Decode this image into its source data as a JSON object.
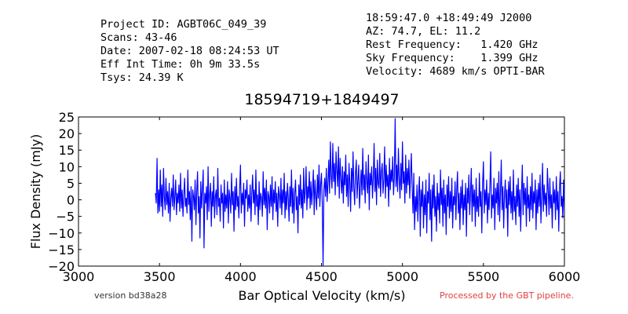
{
  "header_left": [
    "Project ID: AGBT06C_049_39",
    "Scans: 43-46",
    "Date: 2007-02-18 08:24:53 UT",
    "Eff Int Time: 0h 9m 33.5s",
    "Tsys: 24.39 K"
  ],
  "header_right": [
    "18:59:47.0 +18:49:49 J2000",
    "AZ: 74.7, EL: 11.2",
    "Rest Frequency:   1.420 GHz",
    "Sky Frequency:    1.399 GHz",
    "Velocity: 4689 km/s OPTI-BAR"
  ],
  "footer": {
    "version": "version bd38a28",
    "processed": "Processed by the GBT pipeline.",
    "version_color": "#333333",
    "processed_color": "#e04040"
  },
  "chart_data": {
    "type": "line",
    "title": "18594719+1849497",
    "xlabel": "Bar Optical Velocity (km/s)",
    "ylabel": "Flux Density (mJy)",
    "xlim": [
      3000,
      6000
    ],
    "ylim": [
      -20,
      25
    ],
    "xticks": [
      3000,
      3500,
      4000,
      4500,
      5000,
      5500,
      6000
    ],
    "yticks": [
      -20,
      -15,
      -10,
      -5,
      0,
      5,
      10,
      15,
      20,
      25
    ],
    "grid": false,
    "line_color": "#0000ff",
    "series": [
      {
        "x_range": [
          3475,
          5920
        ],
        "x_step": 5,
        "values": [
          2.0,
          -1.0,
          12.5,
          -4.0,
          3.0,
          -3.5,
          9.0,
          -2.0,
          4.5,
          -5.0,
          9.5,
          1.0,
          -3.0,
          6.5,
          -1.5,
          2.5,
          -4.0,
          5.0,
          -6.5,
          0.5,
          3.5,
          -2.0,
          7.5,
          -3.0,
          1.0,
          6.0,
          -4.5,
          2.0,
          -1.0,
          4.5,
          -3.5,
          8.0,
          -2.5,
          3.0,
          -5.0,
          1.5,
          6.5,
          -2.0,
          0.5,
          -4.0,
          9.0,
          -1.5,
          2.5,
          -6.0,
          4.0,
          -12.5,
          3.0,
          1.0,
          -3.0,
          6.0,
          -7.5,
          2.5,
          8.5,
          -4.0,
          1.0,
          -11.5,
          5.5,
          -2.5,
          3.5,
          9.0,
          -14.5,
          2.0,
          -1.0,
          4.0,
          -6.0,
          10.0,
          -3.5,
          1.5,
          5.0,
          -8.0,
          2.5,
          -2.0,
          7.0,
          -5.5,
          1.0,
          3.0,
          -4.5,
          9.5,
          -2.0,
          0.5,
          -6.5,
          4.5,
          -1.0,
          2.0,
          -8.5,
          6.0,
          -3.5,
          1.5,
          -2.5,
          5.5,
          -7.0,
          3.0,
          0.5,
          -4.0,
          8.0,
          -1.5,
          2.5,
          -9.5,
          4.0,
          -3.0,
          6.5,
          -2.0,
          1.0,
          -5.5,
          3.5,
          10.5,
          -4.0,
          2.0,
          -1.5,
          5.0,
          -8.0,
          3.0,
          0.5,
          6.0,
          -3.5,
          1.5,
          -2.5,
          4.5,
          -6.5,
          2.0,
          7.5,
          -1.0,
          3.0,
          -4.5,
          9.0,
          -2.0,
          1.5,
          -7.5,
          5.5,
          -3.0,
          2.0,
          0.5,
          -5.0,
          8.5,
          -1.5,
          3.5,
          -2.5,
          6.0,
          -9.0,
          2.5,
          1.0,
          -4.0,
          4.5,
          -2.0,
          7.0,
          -6.0,
          3.0,
          -1.0,
          5.5,
          -3.5,
          2.0,
          -8.0,
          4.0,
          1.5,
          -2.5,
          6.5,
          -4.5,
          3.0,
          -1.0,
          8.0,
          -5.5,
          2.5,
          -3.0,
          5.0,
          0.5,
          -6.5,
          4.0,
          -2.0,
          9.0,
          -4.0,
          3.5,
          -7.0,
          2.0,
          6.0,
          -3.0,
          1.0,
          -10.0,
          4.5,
          -1.5,
          7.5,
          -2.5,
          3.0,
          -5.5,
          9.5,
          -1.0,
          2.5,
          10.0,
          -3.0,
          4.0,
          0.5,
          8.5,
          -2.5,
          5.5,
          -1.5,
          3.0,
          9.0,
          -4.5,
          6.0,
          1.0,
          -3.0,
          7.5,
          0.5,
          10.5,
          -2.0,
          4.5,
          8.0,
          -1.0,
          -20.0,
          3.0,
          6.5,
          1.0,
          9.5,
          -0.5,
          5.0,
          12.0,
          2.0,
          17.5,
          7.0,
          3.5,
          17.0,
          5.5,
          11.0,
          1.5,
          14.5,
          9.0,
          4.0,
          16.0,
          0.5,
          12.5,
          6.5,
          2.0,
          10.0,
          -1.0,
          8.5,
          4.5,
          13.5,
          1.0,
          7.5,
          -2.0,
          11.0,
          5.0,
          -3.5,
          9.5,
          2.5,
          14.5,
          3.5,
          -1.5,
          8.0,
          12.0,
          0.5,
          6.0,
          10.5,
          -2.5,
          4.0,
          9.0,
          1.5,
          15.5,
          3.0,
          7.5,
          -1.0,
          11.5,
          5.5,
          2.0,
          13.5,
          -3.0,
          8.0,
          4.5,
          10.0,
          0.5,
          6.5,
          17.0,
          2.5,
          9.5,
          -1.5,
          12.0,
          5.0,
          3.5,
          14.0,
          1.0,
          8.5,
          11.0,
          2.0,
          6.0,
          16.0,
          0.5,
          10.5,
          4.0,
          7.5,
          -2.0,
          12.5,
          3.0,
          9.0,
          5.5,
          13.0,
          1.5,
          7.0,
          24.5,
          4.0,
          10.5,
          2.5,
          15.5,
          6.5,
          0.5,
          11.0,
          3.0,
          17.5,
          5.0,
          8.5,
          -1.0,
          13.5,
          2.0,
          9.5,
          4.5,
          12.0,
          0.5,
          7.0,
          14.0,
          3.5,
          -4.0,
          8.0,
          -9.0,
          1.0,
          -3.5,
          4.5,
          -6.5,
          2.0,
          7.0,
          -11.0,
          3.0,
          -2.0,
          5.5,
          -8.5,
          1.5,
          -4.5,
          6.0,
          -10.0,
          2.5,
          -1.0,
          8.0,
          -6.0,
          3.0,
          -12.5,
          4.5,
          -2.5,
          7.5,
          -5.0,
          1.0,
          -9.5,
          5.0,
          -3.0,
          2.0,
          -7.0,
          9.0,
          -1.5,
          3.5,
          -8.0,
          6.0,
          -4.0,
          1.5,
          -10.5,
          4.5,
          -2.0,
          7.0,
          -5.5,
          2.5,
          -3.5,
          6.5,
          -8.5,
          1.0,
          -1.5,
          5.5,
          -6.0,
          3.0,
          8.5,
          -4.0,
          2.0,
          -9.0,
          4.0,
          -2.5,
          6.0,
          -7.5,
          1.5,
          -3.0,
          5.0,
          -11.0,
          3.5,
          -1.0,
          7.5,
          -4.5,
          2.0,
          9.5,
          -6.5,
          4.5,
          -2.0,
          3.0,
          -8.0,
          6.5,
          -3.5,
          1.0,
          -5.0,
          8.0,
          -2.0,
          2.5,
          -10.0,
          5.0,
          11.5,
          -4.0,
          3.0,
          -1.5,
          6.0,
          -7.0,
          2.0,
          -3.0,
          4.5,
          14.5,
          -5.5,
          1.5,
          -2.5,
          6.5,
          -9.0,
          3.5,
          -1.0,
          5.0,
          -4.5,
          8.5,
          -6.5,
          2.0,
          12.0,
          -3.0,
          4.0,
          -8.5,
          1.5,
          6.0,
          -2.5,
          3.0,
          -11.0,
          5.5,
          -1.5,
          7.0,
          -4.0,
          2.5,
          -6.0,
          9.0,
          -3.5,
          1.0,
          -7.5,
          4.5,
          -2.0,
          6.5,
          -5.0,
          3.0,
          -9.5,
          2.0,
          10.5,
          -4.5,
          5.0,
          -1.5,
          3.5,
          -8.0,
          7.0,
          -2.5,
          1.5,
          -6.5,
          4.0,
          -3.0,
          8.0,
          -5.5,
          2.5,
          -1.0,
          6.0,
          -9.0,
          3.0,
          -4.0,
          5.0,
          -2.0,
          7.5,
          -7.0,
          1.0,
          11.0,
          -3.5,
          4.5,
          -1.5,
          2.0,
          -5.0,
          9.5,
          3.0,
          -4.5,
          6.5,
          -2.5,
          1.5,
          -8.5,
          5.5,
          -1.0,
          3.0,
          -6.0,
          7.0,
          -3.0,
          2.5,
          -9.5,
          4.0,
          8.5,
          -2.0,
          1.0,
          -5.5,
          6.0,
          -3.5,
          10.0,
          -4.5,
          3.5,
          1.0,
          -4.0
        ]
      }
    ]
  }
}
